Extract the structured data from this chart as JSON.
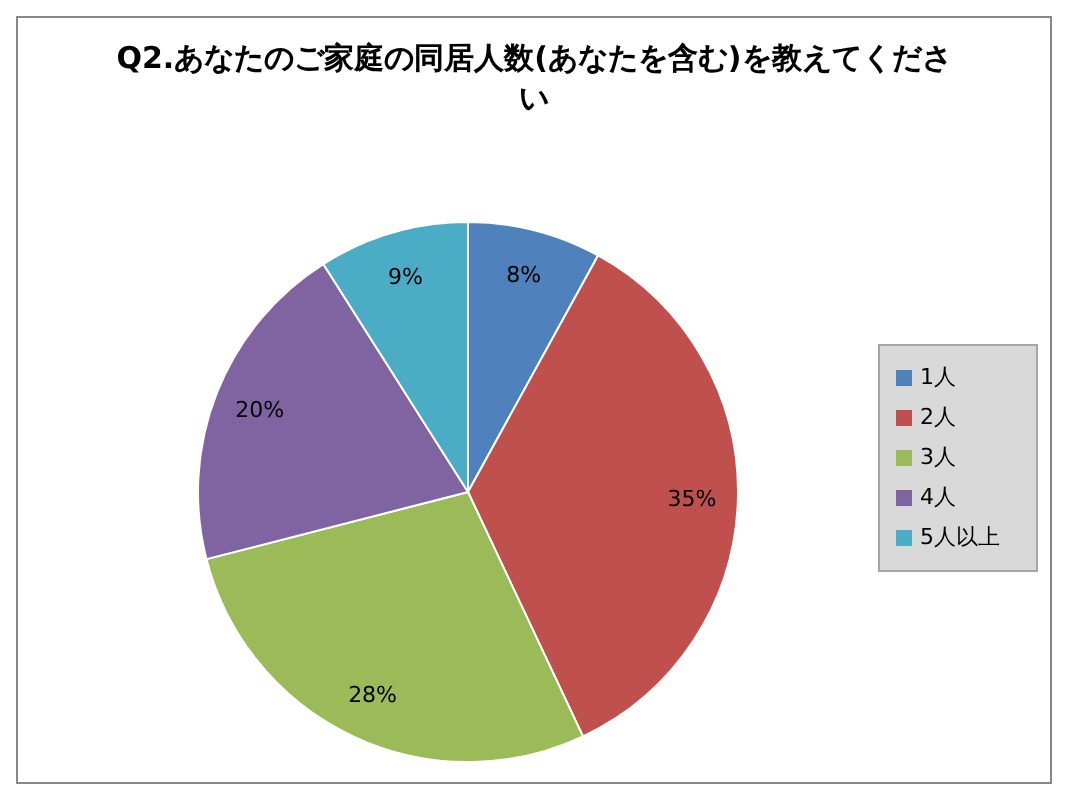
{
  "chart_data": {
    "type": "pie",
    "title": "Q2.あなたのご家庭の同居人数(あなたを含む)を教えてください",
    "categories": [
      "1人",
      "2人",
      "3人",
      "4人",
      "5人以上"
    ],
    "values": [
      8,
      35,
      28,
      20,
      9
    ],
    "value_labels": [
      "8%",
      "35%",
      "28%",
      "20%",
      "9%"
    ],
    "colors": [
      "#4f81bd",
      "#c0504d",
      "#9bbb59",
      "#8064a2",
      "#4bacc6"
    ],
    "legend": "right"
  }
}
